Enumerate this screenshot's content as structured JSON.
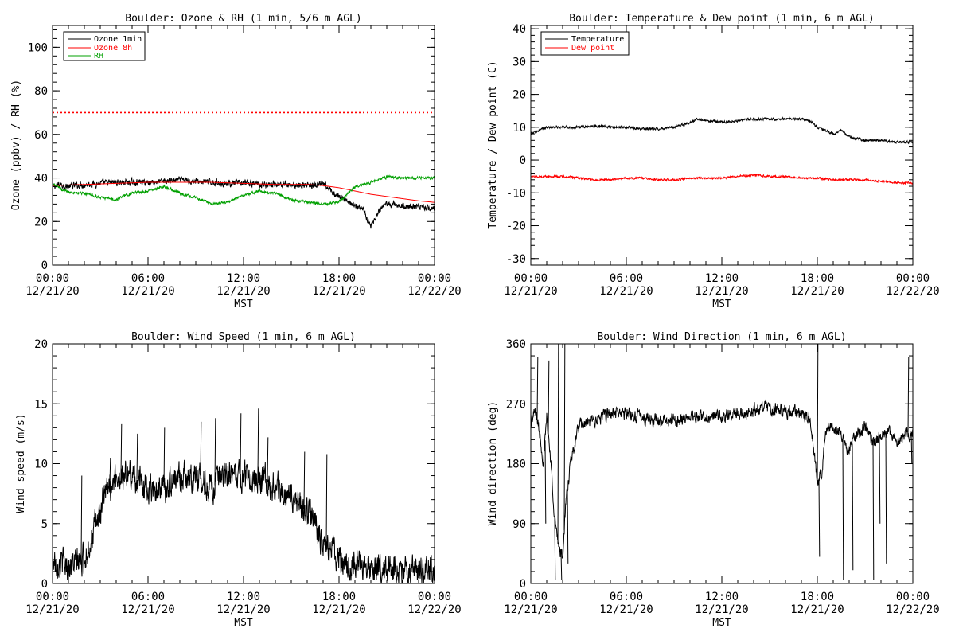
{
  "chart_data": [
    {
      "id": "ozone",
      "type": "line",
      "title": "Boulder: Ozone & RH (1 min, 5/6 m AGL)",
      "xlabel": "MST",
      "ylabel": "Ozone (ppbv) / RH (%)",
      "xlim": [
        0,
        24
      ],
      "ylim": [
        0,
        110
      ],
      "x_ticks": [
        {
          "l1": "00:00",
          "l2": "12/21/20"
        },
        {
          "l1": "06:00",
          "l2": "12/21/20"
        },
        {
          "l1": "12:00",
          "l2": "12/21/20"
        },
        {
          "l1": "18:00",
          "l2": "12/21/20"
        },
        {
          "l1": "00:00",
          "l2": "12/22/20"
        }
      ],
      "y_ticks": [
        0,
        20,
        40,
        60,
        80,
        100
      ],
      "reference_line": {
        "y": 70,
        "color": "#ff0000",
        "style": "dotted"
      },
      "legend_position": "top-left",
      "series": [
        {
          "name": "Ozone 1min",
          "color": "#000000",
          "noise": 1.2,
          "points": [
            [
              0,
              36
            ],
            [
              0.5,
              37
            ],
            [
              1,
              36
            ],
            [
              2,
              37
            ],
            [
              3,
              37.5
            ],
            [
              4,
              38
            ],
            [
              5,
              38
            ],
            [
              6,
              38
            ],
            [
              7,
              38.5
            ],
            [
              8,
              39
            ],
            [
              9,
              38.5
            ],
            [
              10,
              38
            ],
            [
              11,
              37.5
            ],
            [
              12,
              37.5
            ],
            [
              13,
              37
            ],
            [
              14,
              37
            ],
            [
              15,
              37
            ],
            [
              16,
              36.5
            ],
            [
              17,
              37
            ],
            [
              17.5,
              34
            ],
            [
              18,
              31
            ],
            [
              18.5,
              30
            ],
            [
              19,
              27
            ],
            [
              19.5,
              26
            ],
            [
              20,
              18
            ],
            [
              20.5,
              24
            ],
            [
              21,
              28
            ],
            [
              22,
              27
            ],
            [
              23,
              27
            ],
            [
              24,
              26
            ]
          ]
        },
        {
          "name": "Ozone 8h",
          "color": "#ff0000",
          "noise": 0,
          "points": [
            [
              0,
              36.5
            ],
            [
              2,
              37
            ],
            [
              4,
              37.5
            ],
            [
              6,
              38
            ],
            [
              8,
              38
            ],
            [
              10,
              38
            ],
            [
              12,
              37.5
            ],
            [
              14,
              37
            ],
            [
              16,
              37
            ],
            [
              17,
              36.5
            ],
            [
              18,
              35.5
            ],
            [
              19,
              34
            ],
            [
              20,
              32.5
            ],
            [
              21,
              31.5
            ],
            [
              22,
              30.5
            ],
            [
              23,
              29.5
            ],
            [
              24,
              28.8
            ]
          ]
        },
        {
          "name": "RH",
          "color": "#00a000",
          "noise": 0.5,
          "points": [
            [
              0,
              37
            ],
            [
              0.5,
              35
            ],
            [
              1,
              33.5
            ],
            [
              2,
              33
            ],
            [
              3,
              31
            ],
            [
              4,
              30
            ],
            [
              5,
              33
            ],
            [
              6,
              34
            ],
            [
              7,
              36
            ],
            [
              8,
              33
            ],
            [
              9,
              31
            ],
            [
              10,
              28
            ],
            [
              11,
              29
            ],
            [
              12,
              32
            ],
            [
              13,
              34
            ],
            [
              14,
              33
            ],
            [
              15,
              30
            ],
            [
              16,
              29
            ],
            [
              17,
              28
            ],
            [
              18,
              29
            ],
            [
              19,
              36
            ],
            [
              20,
              38
            ],
            [
              21,
              40.5
            ],
            [
              22,
              40
            ],
            [
              23,
              40
            ],
            [
              24,
              40
            ]
          ]
        }
      ]
    },
    {
      "id": "temp",
      "type": "line",
      "title": "Boulder: Temperature & Dew point (1 min, 6 m AGL)",
      "xlabel": "MST",
      "ylabel": "Temperature / Dew point (C)",
      "xlim": [
        0,
        24
      ],
      "ylim": [
        -32,
        41
      ],
      "x_ticks": [
        {
          "l1": "00:00",
          "l2": "12/21/20"
        },
        {
          "l1": "06:00",
          "l2": "12/21/20"
        },
        {
          "l1": "12:00",
          "l2": "12/21/20"
        },
        {
          "l1": "18:00",
          "l2": "12/21/20"
        },
        {
          "l1": "00:00",
          "l2": "12/22/20"
        }
      ],
      "y_ticks": [
        -30,
        -20,
        -10,
        0,
        10,
        20,
        30,
        40
      ],
      "legend_position": "top-left",
      "series": [
        {
          "name": "Temperature",
          "color": "#000000",
          "noise": 0.3,
          "points": [
            [
              0,
              8
            ],
            [
              0.5,
              9
            ],
            [
              1,
              10
            ],
            [
              2,
              10
            ],
            [
              3,
              10
            ],
            [
              4,
              10.5
            ],
            [
              5,
              10
            ],
            [
              6,
              10
            ],
            [
              7,
              9.5
            ],
            [
              8,
              9.5
            ],
            [
              9,
              10
            ],
            [
              10,
              11.5
            ],
            [
              10.5,
              12.5
            ],
            [
              11,
              12
            ],
            [
              12,
              11.5
            ],
            [
              13,
              12
            ],
            [
              14,
              12.5
            ],
            [
              15,
              12.5
            ],
            [
              16,
              12.5
            ],
            [
              17,
              12.5
            ],
            [
              17.5,
              12
            ],
            [
              18,
              10
            ],
            [
              18.5,
              9
            ],
            [
              19,
              8
            ],
            [
              19.5,
              9
            ],
            [
              20,
              7
            ],
            [
              21,
              6
            ],
            [
              22,
              6
            ],
            [
              23,
              5.5
            ],
            [
              24,
              5.5
            ]
          ]
        },
        {
          "name": "Dew point",
          "color": "#ff0000",
          "noise": 0.25,
          "points": [
            [
              0,
              -5
            ],
            [
              2,
              -5
            ],
            [
              3,
              -5.5
            ],
            [
              4,
              -6
            ],
            [
              5,
              -6
            ],
            [
              6,
              -5.5
            ],
            [
              7,
              -5.5
            ],
            [
              8,
              -6
            ],
            [
              9,
              -6
            ],
            [
              10,
              -5.5
            ],
            [
              11,
              -5.5
            ],
            [
              12,
              -5.5
            ],
            [
              13,
              -5
            ],
            [
              14,
              -4.5
            ],
            [
              15,
              -5
            ],
            [
              16,
              -5
            ],
            [
              17,
              -5.5
            ],
            [
              18,
              -5.5
            ],
            [
              19,
              -6
            ],
            [
              20,
              -6
            ],
            [
              21,
              -6
            ],
            [
              22,
              -6.5
            ],
            [
              23,
              -7
            ],
            [
              24,
              -7
            ]
          ]
        }
      ]
    },
    {
      "id": "wspd",
      "type": "line",
      "title": "Boulder: Wind Speed (1 min, 6 m AGL)",
      "xlabel": "MST",
      "ylabel": "Wind speed (m/s)",
      "xlim": [
        0,
        24
      ],
      "ylim": [
        0,
        20
      ],
      "x_ticks": [
        {
          "l1": "00:00",
          "l2": "12/21/20"
        },
        {
          "l1": "06:00",
          "l2": "12/21/20"
        },
        {
          "l1": "12:00",
          "l2": "12/21/20"
        },
        {
          "l1": "18:00",
          "l2": "12/21/20"
        },
        {
          "l1": "00:00",
          "l2": "12/22/20"
        }
      ],
      "y_ticks": [
        0,
        5,
        10,
        15,
        20
      ],
      "series": [
        {
          "name": "",
          "color": "#000000",
          "noise": 1.0,
          "points": [
            [
              0,
              2
            ],
            [
              1,
              1.5
            ],
            [
              2,
              2
            ],
            [
              2.5,
              4
            ],
            [
              3,
              6
            ],
            [
              3.5,
              8
            ],
            [
              4,
              9
            ],
            [
              5,
              9
            ],
            [
              6,
              8
            ],
            [
              7,
              8
            ],
            [
              8,
              9
            ],
            [
              9,
              9
            ],
            [
              10,
              8
            ],
            [
              11,
              9
            ],
            [
              12,
              9
            ],
            [
              13,
              9
            ],
            [
              14,
              8
            ],
            [
              15,
              7
            ],
            [
              16,
              6
            ],
            [
              16.5,
              5
            ],
            [
              17,
              3
            ],
            [
              17.5,
              3
            ],
            [
              18,
              2
            ],
            [
              18.5,
              1
            ],
            [
              19,
              2
            ],
            [
              20,
              1.2
            ],
            [
              21,
              1.2
            ],
            [
              22,
              1
            ],
            [
              23,
              1
            ],
            [
              24,
              1
            ]
          ]
        }
      ],
      "spikes": [
        {
          "x": 1.8,
          "y": 9
        },
        {
          "x": 3.6,
          "y": 10.5
        },
        {
          "x": 4.3,
          "y": 13.3
        },
        {
          "x": 5.3,
          "y": 12.5
        },
        {
          "x": 7.0,
          "y": 13
        },
        {
          "x": 9.3,
          "y": 13.5
        },
        {
          "x": 10.2,
          "y": 13.8
        },
        {
          "x": 11.8,
          "y": 14.2
        },
        {
          "x": 12.9,
          "y": 14.6
        },
        {
          "x": 13.5,
          "y": 12.2
        },
        {
          "x": 15.8,
          "y": 11
        },
        {
          "x": 17.2,
          "y": 10.8
        }
      ]
    },
    {
      "id": "wdir",
      "type": "line",
      "title": "Boulder: Wind Direction (1 min, 6 m AGL)",
      "xlabel": "MST",
      "ylabel": "Wind direction (deg)",
      "xlim": [
        0,
        24
      ],
      "ylim": [
        0,
        360
      ],
      "x_ticks": [
        {
          "l1": "00:00",
          "l2": "12/21/20"
        },
        {
          "l1": "06:00",
          "l2": "12/21/20"
        },
        {
          "l1": "12:00",
          "l2": "12/21/20"
        },
        {
          "l1": "18:00",
          "l2": "12/21/20"
        },
        {
          "l1": "00:00",
          "l2": "12/22/20"
        }
      ],
      "y_ticks": [
        0,
        90,
        180,
        270,
        360
      ],
      "series": [
        {
          "name": "",
          "color": "#000000",
          "noise": 8,
          "points": [
            [
              0,
              240
            ],
            [
              0.3,
              260
            ],
            [
              0.6,
              220
            ],
            [
              0.8,
              180
            ],
            [
              1,
              250
            ],
            [
              1.2,
              200
            ],
            [
              1.5,
              100
            ],
            [
              1.7,
              60
            ],
            [
              2,
              40
            ],
            [
              2.2,
              120
            ],
            [
              2.5,
              180
            ],
            [
              3,
              235
            ],
            [
              3.5,
              240
            ],
            [
              4,
              245
            ],
            [
              4.5,
              250
            ],
            [
              5,
              255
            ],
            [
              6,
              255
            ],
            [
              7,
              250
            ],
            [
              8,
              245
            ],
            [
              9,
              245
            ],
            [
              10,
              250
            ],
            [
              11,
              250
            ],
            [
              12,
              250
            ],
            [
              13,
              255
            ],
            [
              14,
              260
            ],
            [
              15,
              265
            ],
            [
              16,
              260
            ],
            [
              17,
              255
            ],
            [
              17.5,
              250
            ],
            [
              17.8,
              200
            ],
            [
              18,
              150
            ],
            [
              18.3,
              170
            ],
            [
              18.5,
              230
            ],
            [
              19,
              240
            ],
            [
              19.5,
              220
            ],
            [
              20,
              200
            ],
            [
              20.5,
              225
            ],
            [
              21,
              235
            ],
            [
              21.5,
              215
            ],
            [
              22,
              220
            ],
            [
              22.5,
              230
            ],
            [
              23,
              215
            ],
            [
              23.5,
              220
            ],
            [
              24,
              230
            ]
          ]
        }
      ],
      "spikes": [
        {
          "x": 0.4,
          "y": 340
        },
        {
          "x": 0.9,
          "y": 90
        },
        {
          "x": 1.1,
          "y": 335
        },
        {
          "x": 1.5,
          "y": 5
        },
        {
          "x": 1.7,
          "y": 360
        },
        {
          "x": 1.9,
          "y": 5
        },
        {
          "x": 2.1,
          "y": 360
        },
        {
          "x": 2.3,
          "y": 30
        },
        {
          "x": 18.0,
          "y": 360
        },
        {
          "x": 18.1,
          "y": 40
        },
        {
          "x": 19.6,
          "y": 5
        },
        {
          "x": 20.2,
          "y": 20
        },
        {
          "x": 21.5,
          "y": 5
        },
        {
          "x": 21.9,
          "y": 90
        },
        {
          "x": 22.3,
          "y": 30
        },
        {
          "x": 23.7,
          "y": 340
        },
        {
          "x": 23.9,
          "y": 180
        }
      ]
    }
  ]
}
